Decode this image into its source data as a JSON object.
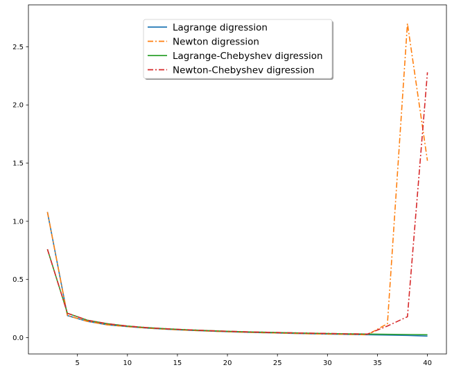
{
  "chart_data": {
    "type": "line",
    "title": "",
    "xlabel": "",
    "ylabel": "",
    "xlim": [
      0.1,
      41.9
    ],
    "ylim": [
      -0.14,
      2.86
    ],
    "xticks": [
      5,
      10,
      15,
      20,
      25,
      30,
      35,
      40
    ],
    "yticks": [
      0.0,
      0.5,
      1.0,
      1.5,
      2.0,
      2.5
    ],
    "xtick_labels": [
      "5",
      "10",
      "15",
      "20",
      "25",
      "30",
      "35",
      "40"
    ],
    "ytick_labels": [
      "0.0",
      "0.5",
      "1.0",
      "1.5",
      "2.0",
      "2.5"
    ],
    "grid": false,
    "legend_position": "upper-center",
    "x": [
      2,
      4,
      6,
      8,
      10,
      12,
      14,
      16,
      18,
      20,
      22,
      24,
      26,
      28,
      30,
      32,
      34,
      36,
      38,
      40
    ],
    "series": [
      {
        "name": "Lagrange digression",
        "color": "#1f77b4",
        "linestyle": "solid",
        "values": [
          1.08,
          0.19,
          0.14,
          0.11,
          0.095,
          0.082,
          0.072,
          0.064,
          0.057,
          0.051,
          0.046,
          0.042,
          0.038,
          0.034,
          0.031,
          0.028,
          0.025,
          0.022,
          0.019,
          0.013
        ]
      },
      {
        "name": "Newton digression",
        "color": "#ff7f0e",
        "linestyle": "dashdot",
        "values": [
          1.08,
          0.19,
          0.14,
          0.11,
          0.095,
          0.082,
          0.072,
          0.064,
          0.057,
          0.051,
          0.046,
          0.042,
          0.038,
          0.034,
          0.031,
          0.028,
          0.025,
          0.12,
          2.7,
          1.52
        ]
      },
      {
        "name": "Lagrange-Chebyshev digression",
        "color": "#2ca02c",
        "linestyle": "solid",
        "values": [
          0.76,
          0.21,
          0.15,
          0.12,
          0.1,
          0.086,
          0.076,
          0.068,
          0.061,
          0.055,
          0.05,
          0.046,
          0.042,
          0.039,
          0.036,
          0.033,
          0.031,
          0.029,
          0.027,
          0.025
        ]
      },
      {
        "name": "Newton-Chebyshev digression",
        "color": "#d62728",
        "linestyle": "dashdot",
        "values": [
          0.76,
          0.21,
          0.15,
          0.12,
          0.1,
          0.086,
          0.076,
          0.068,
          0.061,
          0.055,
          0.05,
          0.046,
          0.042,
          0.039,
          0.036,
          0.033,
          0.031,
          0.1,
          0.18,
          2.28
        ]
      }
    ]
  }
}
